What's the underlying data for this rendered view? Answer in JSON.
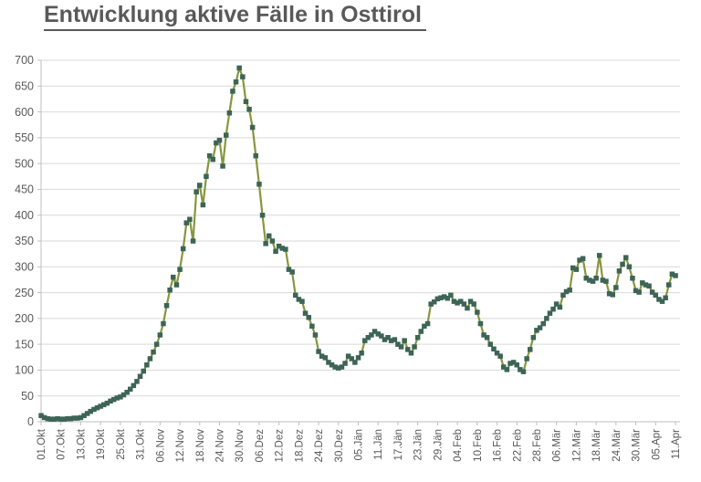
{
  "header": {
    "title": "Entwicklung aktive Fälle in Osttirol"
  },
  "chart_data": {
    "type": "line",
    "title": "Entwicklung aktive Fälle in Osttirol",
    "xlabel": "",
    "ylabel": "",
    "legend": "none",
    "grid": "horizontal",
    "x_frequency": "daily",
    "x_first": "01.Okt",
    "x_last": "11.Apr",
    "tick_every_n_points": 6,
    "x_tick_labels": [
      "01.Okt",
      "07.Okt",
      "13.Okt",
      "19.Okt",
      "25.Okt",
      "31.Okt",
      "06.Nov",
      "12.Nov",
      "18.Nov",
      "24.Nov",
      "30.Nov",
      "06.Dez",
      "12.Dez",
      "18.Dez",
      "24.Dez",
      "30.Dez",
      "05.Jän",
      "11.Jän",
      "17.Jän",
      "23.Jän",
      "29.Jän",
      "04.Feb",
      "10.Feb",
      "16.Feb",
      "22.Feb",
      "28.Feb",
      "06.Mär",
      "12.Mär",
      "18.Mär",
      "24.Mär",
      "30.Mär",
      "05.Apr",
      "11.Apr"
    ],
    "ylim": [
      0,
      700
    ],
    "y_tick_step": 50,
    "y_tick_labels": [
      "0",
      "50",
      "100",
      "150",
      "200",
      "250",
      "300",
      "350",
      "400",
      "450",
      "500",
      "550",
      "600",
      "650",
      "700"
    ],
    "marker": "square",
    "series": [
      {
        "name": "aktive Fälle",
        "values": [
          12,
          8,
          6,
          5,
          5,
          6,
          5,
          5,
          6,
          6,
          7,
          7,
          8,
          12,
          16,
          20,
          24,
          27,
          30,
          33,
          36,
          40,
          43,
          46,
          48,
          52,
          57,
          63,
          70,
          78,
          88,
          98,
          110,
          122,
          135,
          150,
          168,
          190,
          225,
          255,
          280,
          265,
          295,
          335,
          385,
          392,
          350,
          445,
          458,
          420,
          475,
          515,
          508,
          540,
          545,
          495,
          555,
          598,
          640,
          658,
          685,
          668,
          620,
          605,
          570,
          515,
          460,
          400,
          345,
          360,
          350,
          330,
          340,
          336,
          334,
          295,
          290,
          245,
          237,
          233,
          210,
          202,
          185,
          168,
          136,
          127,
          124,
          115,
          110,
          106,
          104,
          106,
          113,
          127,
          122,
          115,
          124,
          133,
          157,
          163,
          168,
          175,
          170,
          166,
          159,
          163,
          157,
          159,
          150,
          145,
          157,
          140,
          133,
          145,
          163,
          175,
          185,
          190,
          228,
          232,
          238,
          240,
          242,
          239,
          245,
          233,
          230,
          233,
          228,
          220,
          233,
          228,
          212,
          190,
          168,
          163,
          150,
          141,
          133,
          127,
          106,
          101,
          113,
          115,
          110,
          101,
          97,
          122,
          140,
          163,
          177,
          182,
          190,
          200,
          210,
          218,
          228,
          222,
          245,
          252,
          255,
          298,
          295,
          313,
          316,
          278,
          274,
          272,
          278,
          322,
          274,
          272,
          248,
          246,
          260,
          292,
          305,
          318,
          300,
          278,
          254,
          251,
          269,
          265,
          263,
          251,
          245,
          237,
          233,
          240,
          265,
          286,
          283
        ]
      }
    ],
    "colors": {
      "line": "#86973e",
      "marker": "#3d6456",
      "grid": "#d9d9d9",
      "axis": "#bfbfbf",
      "text": "#595959",
      "title": "#595959"
    }
  }
}
